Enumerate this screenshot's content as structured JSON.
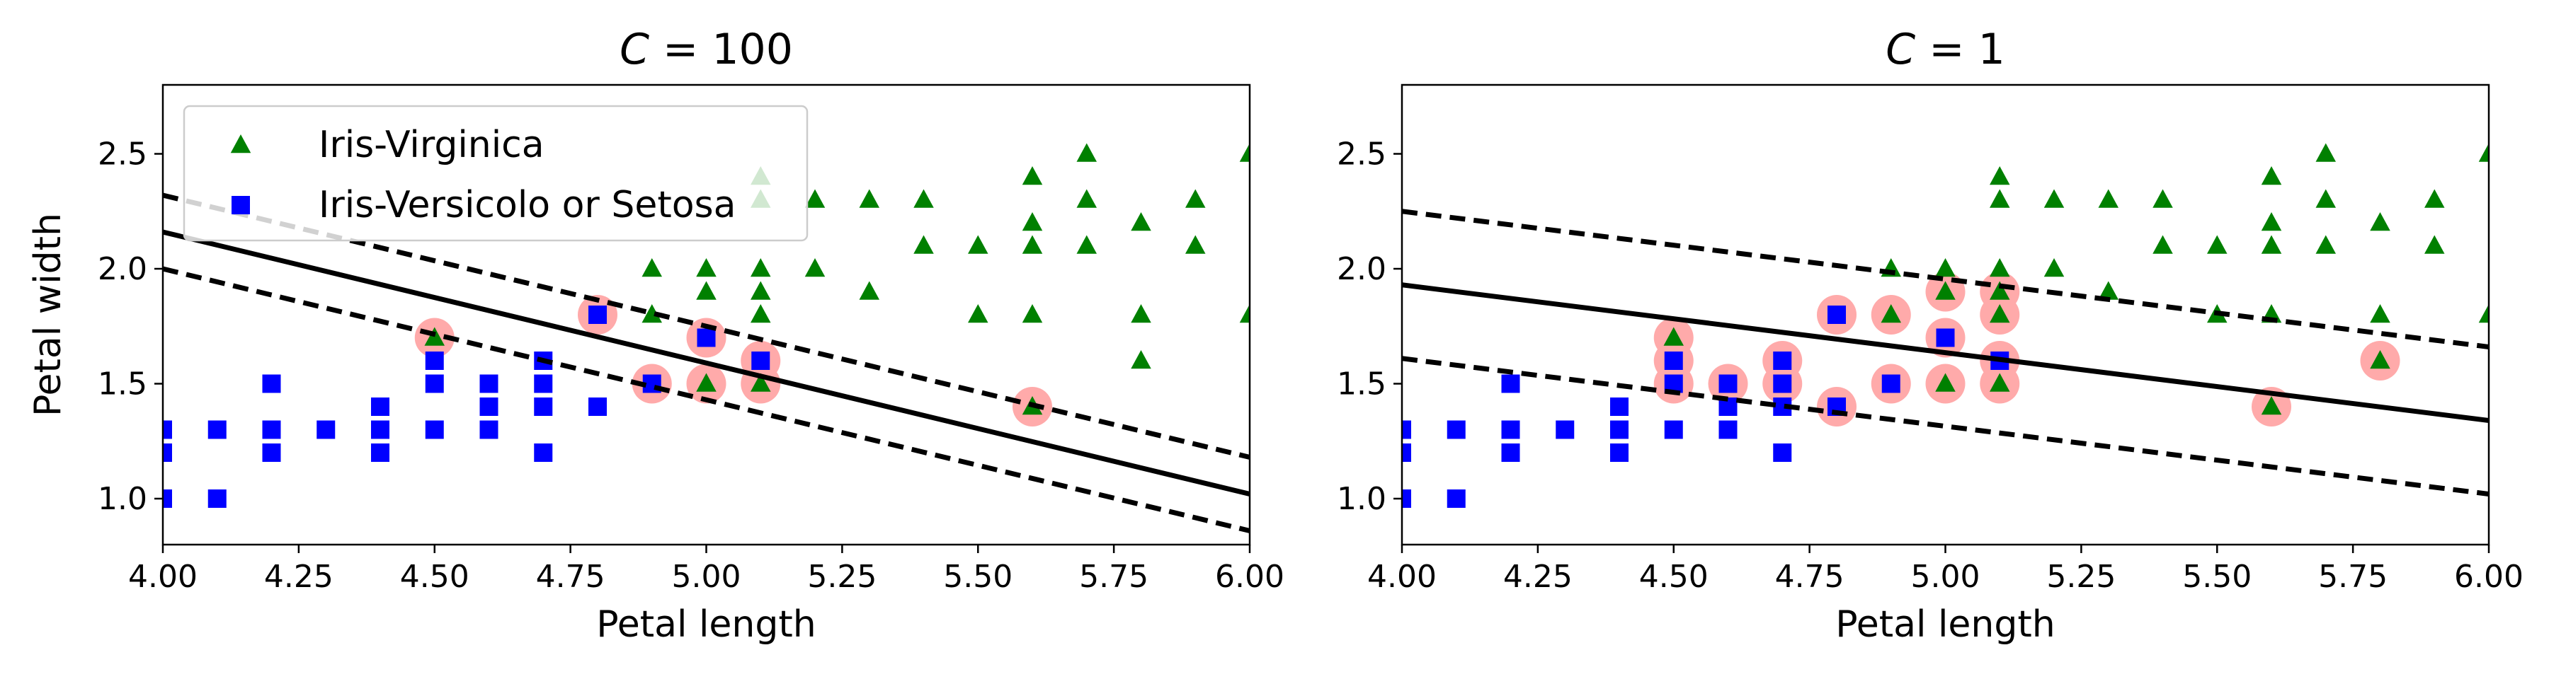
{
  "chart_data": [
    {
      "type": "scatter",
      "title_var": "C",
      "title_eq": " = 100",
      "xlabel": "Petal length",
      "ylabel": "Petal width",
      "xlim": [
        4.0,
        6.0
      ],
      "ylim": [
        0.8,
        2.8
      ],
      "xticks": [
        "4.00",
        "4.25",
        "4.50",
        "4.75",
        "5.00",
        "5.25",
        "5.50",
        "5.75",
        "6.00"
      ],
      "yticks": [
        "1.0",
        "1.5",
        "2.0",
        "2.5"
      ],
      "legend": {
        "placement": "upper-left",
        "entries": [
          "Iris-Virginica",
          "Iris-Versicolo or Setosa"
        ]
      },
      "series": [
        {
          "name": "Iris-Virginica",
          "marker": "triangle",
          "color": "#008000",
          "points": [
            [
              4.5,
              1.7
            ],
            [
              4.9,
              1.8
            ],
            [
              4.9,
              2.0
            ],
            [
              5.0,
              1.5
            ],
            [
              5.0,
              1.9
            ],
            [
              5.0,
              2.0
            ],
            [
              5.1,
              1.5
            ],
            [
              5.1,
              1.8
            ],
            [
              5.1,
              1.9
            ],
            [
              5.1,
              2.0
            ],
            [
              5.1,
              2.3
            ],
            [
              5.1,
              2.4
            ],
            [
              5.2,
              2.0
            ],
            [
              5.2,
              2.3
            ],
            [
              5.3,
              1.9
            ],
            [
              5.3,
              2.3
            ],
            [
              5.4,
              2.1
            ],
            [
              5.4,
              2.3
            ],
            [
              5.5,
              1.8
            ],
            [
              5.5,
              2.1
            ],
            [
              5.6,
              1.4
            ],
            [
              5.6,
              1.8
            ],
            [
              5.6,
              2.1
            ],
            [
              5.6,
              2.2
            ],
            [
              5.6,
              2.4
            ],
            [
              5.7,
              2.1
            ],
            [
              5.7,
              2.3
            ],
            [
              5.7,
              2.5
            ],
            [
              5.8,
              1.6
            ],
            [
              5.8,
              1.8
            ],
            [
              5.8,
              2.2
            ],
            [
              5.9,
              2.1
            ],
            [
              5.9,
              2.3
            ],
            [
              6.0,
              1.8
            ],
            [
              6.0,
              2.5
            ]
          ]
        },
        {
          "name": "Iris-Versicolo or Setosa",
          "marker": "square",
          "color": "#0000ff",
          "points": [
            [
              4.0,
              1.0
            ],
            [
              4.0,
              1.2
            ],
            [
              4.0,
              1.3
            ],
            [
              4.1,
              1.0
            ],
            [
              4.1,
              1.3
            ],
            [
              4.2,
              1.2
            ],
            [
              4.2,
              1.3
            ],
            [
              4.2,
              1.5
            ],
            [
              4.3,
              1.3
            ],
            [
              4.4,
              1.2
            ],
            [
              4.4,
              1.3
            ],
            [
              4.4,
              1.4
            ],
            [
              4.5,
              1.3
            ],
            [
              4.5,
              1.5
            ],
            [
              4.5,
              1.6
            ],
            [
              4.6,
              1.3
            ],
            [
              4.6,
              1.4
            ],
            [
              4.6,
              1.5
            ],
            [
              4.7,
              1.2
            ],
            [
              4.7,
              1.4
            ],
            [
              4.7,
              1.5
            ],
            [
              4.7,
              1.6
            ],
            [
              4.8,
              1.4
            ],
            [
              4.8,
              1.8
            ],
            [
              4.9,
              1.5
            ],
            [
              5.0,
              1.7
            ],
            [
              5.1,
              1.6
            ]
          ]
        }
      ],
      "support_vectors": [
        [
          4.5,
          1.7
        ],
        [
          4.8,
          1.8
        ],
        [
          4.9,
          1.5
        ],
        [
          5.0,
          1.5
        ],
        [
          5.0,
          1.7
        ],
        [
          5.1,
          1.5
        ],
        [
          5.1,
          1.6
        ],
        [
          5.6,
          1.4
        ]
      ],
      "decision_boundary": {
        "x": [
          4.0,
          6.0
        ],
        "y": [
          2.16,
          1.02
        ]
      },
      "margin_upper": {
        "x": [
          4.0,
          6.0
        ],
        "y": [
          2.32,
          1.18
        ]
      },
      "margin_lower": {
        "x": [
          4.0,
          6.0
        ],
        "y": [
          2.0,
          0.86
        ]
      }
    },
    {
      "type": "scatter",
      "title_var": "C",
      "title_eq": " = 1",
      "xlabel": "Petal length",
      "xlim": [
        4.0,
        6.0
      ],
      "ylim": [
        0.8,
        2.8
      ],
      "xticks": [
        "4.00",
        "4.25",
        "4.50",
        "4.75",
        "5.00",
        "5.25",
        "5.50",
        "5.75",
        "6.00"
      ],
      "yticks": [
        "1.0",
        "1.5",
        "2.0",
        "2.5"
      ],
      "series": [
        {
          "name": "Iris-Virginica",
          "marker": "triangle",
          "color": "#008000",
          "points": [
            [
              4.5,
              1.7
            ],
            [
              4.9,
              1.8
            ],
            [
              4.9,
              2.0
            ],
            [
              5.0,
              1.5
            ],
            [
              5.0,
              1.9
            ],
            [
              5.0,
              2.0
            ],
            [
              5.1,
              1.5
            ],
            [
              5.1,
              1.8
            ],
            [
              5.1,
              1.9
            ],
            [
              5.1,
              2.0
            ],
            [
              5.1,
              2.3
            ],
            [
              5.1,
              2.4
            ],
            [
              5.2,
              2.0
            ],
            [
              5.2,
              2.3
            ],
            [
              5.3,
              1.9
            ],
            [
              5.3,
              2.3
            ],
            [
              5.4,
              2.1
            ],
            [
              5.4,
              2.3
            ],
            [
              5.5,
              1.8
            ],
            [
              5.5,
              2.1
            ],
            [
              5.6,
              1.4
            ],
            [
              5.6,
              1.8
            ],
            [
              5.6,
              2.1
            ],
            [
              5.6,
              2.2
            ],
            [
              5.6,
              2.4
            ],
            [
              5.7,
              2.1
            ],
            [
              5.7,
              2.3
            ],
            [
              5.7,
              2.5
            ],
            [
              5.8,
              1.6
            ],
            [
              5.8,
              1.8
            ],
            [
              5.8,
              2.2
            ],
            [
              5.9,
              2.1
            ],
            [
              5.9,
              2.3
            ],
            [
              6.0,
              1.8
            ],
            [
              6.0,
              2.5
            ]
          ]
        },
        {
          "name": "Iris-Versicolo or Setosa",
          "marker": "square",
          "color": "#0000ff",
          "points": [
            [
              4.0,
              1.0
            ],
            [
              4.0,
              1.2
            ],
            [
              4.0,
              1.3
            ],
            [
              4.1,
              1.0
            ],
            [
              4.1,
              1.3
            ],
            [
              4.2,
              1.2
            ],
            [
              4.2,
              1.3
            ],
            [
              4.2,
              1.5
            ],
            [
              4.3,
              1.3
            ],
            [
              4.4,
              1.2
            ],
            [
              4.4,
              1.3
            ],
            [
              4.4,
              1.4
            ],
            [
              4.5,
              1.3
            ],
            [
              4.5,
              1.5
            ],
            [
              4.5,
              1.6
            ],
            [
              4.6,
              1.3
            ],
            [
              4.6,
              1.4
            ],
            [
              4.6,
              1.5
            ],
            [
              4.7,
              1.2
            ],
            [
              4.7,
              1.4
            ],
            [
              4.7,
              1.5
            ],
            [
              4.7,
              1.6
            ],
            [
              4.8,
              1.4
            ],
            [
              4.8,
              1.8
            ],
            [
              4.9,
              1.5
            ],
            [
              5.0,
              1.7
            ],
            [
              5.1,
              1.6
            ]
          ]
        }
      ],
      "support_vectors": [
        [
          4.5,
          1.5
        ],
        [
          4.5,
          1.6
        ],
        [
          4.5,
          1.7
        ],
        [
          4.6,
          1.5
        ],
        [
          4.7,
          1.5
        ],
        [
          4.7,
          1.6
        ],
        [
          4.8,
          1.4
        ],
        [
          4.8,
          1.8
        ],
        [
          4.9,
          1.5
        ],
        [
          4.9,
          1.8
        ],
        [
          5.0,
          1.5
        ],
        [
          5.0,
          1.7
        ],
        [
          5.0,
          1.9
        ],
        [
          5.1,
          1.5
        ],
        [
          5.1,
          1.6
        ],
        [
          5.1,
          1.8
        ],
        [
          5.1,
          1.9
        ],
        [
          5.6,
          1.4
        ],
        [
          5.8,
          1.6
        ]
      ],
      "decision_boundary": {
        "x": [
          4.0,
          6.0
        ],
        "y": [
          1.93,
          1.34
        ]
      },
      "margin_upper": {
        "x": [
          4.0,
          6.0
        ],
        "y": [
          2.25,
          1.66
        ]
      },
      "margin_lower": {
        "x": [
          4.0,
          6.0
        ],
        "y": [
          1.61,
          1.02
        ]
      }
    }
  ],
  "colors": {
    "support_vector_highlight": "#ffaaaa",
    "axis": "#000000",
    "background": "#ffffff"
  }
}
